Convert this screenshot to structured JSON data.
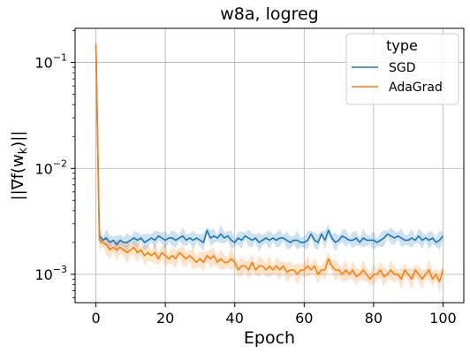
{
  "chart_data": {
    "type": "line",
    "title": "w8a, logreg",
    "xlabel": "Epoch",
    "ylabel": "||∇f(w_k)||",
    "xlim": [
      -6,
      106
    ],
    "ylim": [
      0.00054,
      0.21
    ],
    "yscale": "log",
    "grid": true,
    "legend_position": "top-right",
    "legend_title": "type",
    "x_ticks": [
      0,
      20,
      40,
      60,
      80,
      100
    ],
    "y_ticks": [
      {
        "value": 0.1,
        "base": "10",
        "exp": "−1"
      },
      {
        "value": 0.01,
        "base": "10",
        "exp": "−2"
      },
      {
        "value": 0.001,
        "base": "10",
        "exp": "−3"
      }
    ],
    "x": [
      0,
      1,
      2,
      3,
      4,
      5,
      6,
      7,
      8,
      9,
      10,
      11,
      12,
      13,
      14,
      15,
      16,
      17,
      18,
      19,
      20,
      21,
      22,
      23,
      24,
      25,
      26,
      27,
      28,
      29,
      30,
      31,
      32,
      33,
      34,
      35,
      36,
      37,
      38,
      39,
      40,
      41,
      42,
      43,
      44,
      45,
      46,
      47,
      48,
      49,
      50,
      51,
      52,
      53,
      54,
      55,
      56,
      57,
      58,
      59,
      60,
      61,
      62,
      63,
      64,
      65,
      66,
      67,
      68,
      69,
      70,
      71,
      72,
      73,
      74,
      75,
      76,
      77,
      78,
      79,
      80,
      81,
      82,
      83,
      84,
      85,
      86,
      87,
      88,
      89,
      90,
      91,
      92,
      93,
      94,
      95,
      96,
      97,
      98,
      99,
      100
    ],
    "series": [
      {
        "name": "SGD",
        "color": "#1f77b4",
        "values": [
          0.148,
          0.0023,
          0.0021,
          0.0022,
          0.002,
          0.0021,
          0.0019,
          0.0021,
          0.002,
          0.002,
          0.0021,
          0.0022,
          0.0021,
          0.0022,
          0.002,
          0.0021,
          0.0022,
          0.0021,
          0.0023,
          0.0022,
          0.0021,
          0.0022,
          0.0022,
          0.0021,
          0.0022,
          0.0023,
          0.0021,
          0.0022,
          0.0021,
          0.0022,
          0.0021,
          0.002,
          0.0026,
          0.0022,
          0.0023,
          0.0022,
          0.0024,
          0.0022,
          0.0023,
          0.0021,
          0.002,
          0.0022,
          0.0021,
          0.0023,
          0.0022,
          0.0021,
          0.0022,
          0.002,
          0.0021,
          0.0022,
          0.0021,
          0.0022,
          0.0021,
          0.0022,
          0.0022,
          0.0021,
          0.002,
          0.0021,
          0.0021,
          0.002,
          0.002,
          0.0021,
          0.0024,
          0.0021,
          0.002,
          0.0024,
          0.0021,
          0.0026,
          0.0022,
          0.002,
          0.0021,
          0.0023,
          0.0022,
          0.0021,
          0.0021,
          0.0022,
          0.002,
          0.0022,
          0.0021,
          0.0021,
          0.0021,
          0.002,
          0.0021,
          0.0022,
          0.0024,
          0.0023,
          0.0022,
          0.0023,
          0.0022,
          0.0021,
          0.0021,
          0.0022,
          0.0021,
          0.0023,
          0.0021,
          0.0022,
          0.0021,
          0.0022,
          0.002,
          0.0021,
          0.0023
        ],
        "band_lower_factor": 0.87,
        "band_upper_factor": 1.15
      },
      {
        "name": "AdaGrad",
        "color": "#ff7f0e",
        "values": [
          0.148,
          0.0021,
          0.002,
          0.0019,
          0.0017,
          0.0018,
          0.0017,
          0.0018,
          0.0017,
          0.0016,
          0.0017,
          0.0018,
          0.0016,
          0.0017,
          0.0015,
          0.0016,
          0.0015,
          0.0016,
          0.0014,
          0.0016,
          0.0015,
          0.0014,
          0.0015,
          0.0014,
          0.0016,
          0.0015,
          0.0014,
          0.0015,
          0.0014,
          0.0013,
          0.0014,
          0.0013,
          0.0015,
          0.0014,
          0.0015,
          0.0013,
          0.0014,
          0.0013,
          0.0013,
          0.0014,
          0.0013,
          0.0011,
          0.0012,
          0.0012,
          0.0011,
          0.0013,
          0.0011,
          0.0012,
          0.0012,
          0.0011,
          0.0012,
          0.0011,
          0.0012,
          0.0011,
          0.0012,
          0.00105,
          0.0011,
          0.0011,
          0.001,
          0.0011,
          0.0011,
          0.0012,
          0.0011,
          0.0012,
          0.001,
          0.0011,
          0.0011,
          0.0014,
          0.0012,
          0.0011,
          0.0011,
          0.001,
          0.0011,
          0.001,
          0.0011,
          0.00095,
          0.001,
          0.0011,
          0.001,
          0.0009,
          0.001,
          0.001,
          0.0011,
          0.00095,
          0.001,
          0.0011,
          0.001,
          0.001,
          0.0009,
          0.0011,
          0.001,
          0.0009,
          0.0011,
          0.001,
          0.0009,
          0.001,
          0.0011,
          0.0009,
          0.001,
          0.00085,
          0.0011
        ],
        "band_lower_factor": 0.84,
        "band_upper_factor": 1.18
      }
    ]
  }
}
